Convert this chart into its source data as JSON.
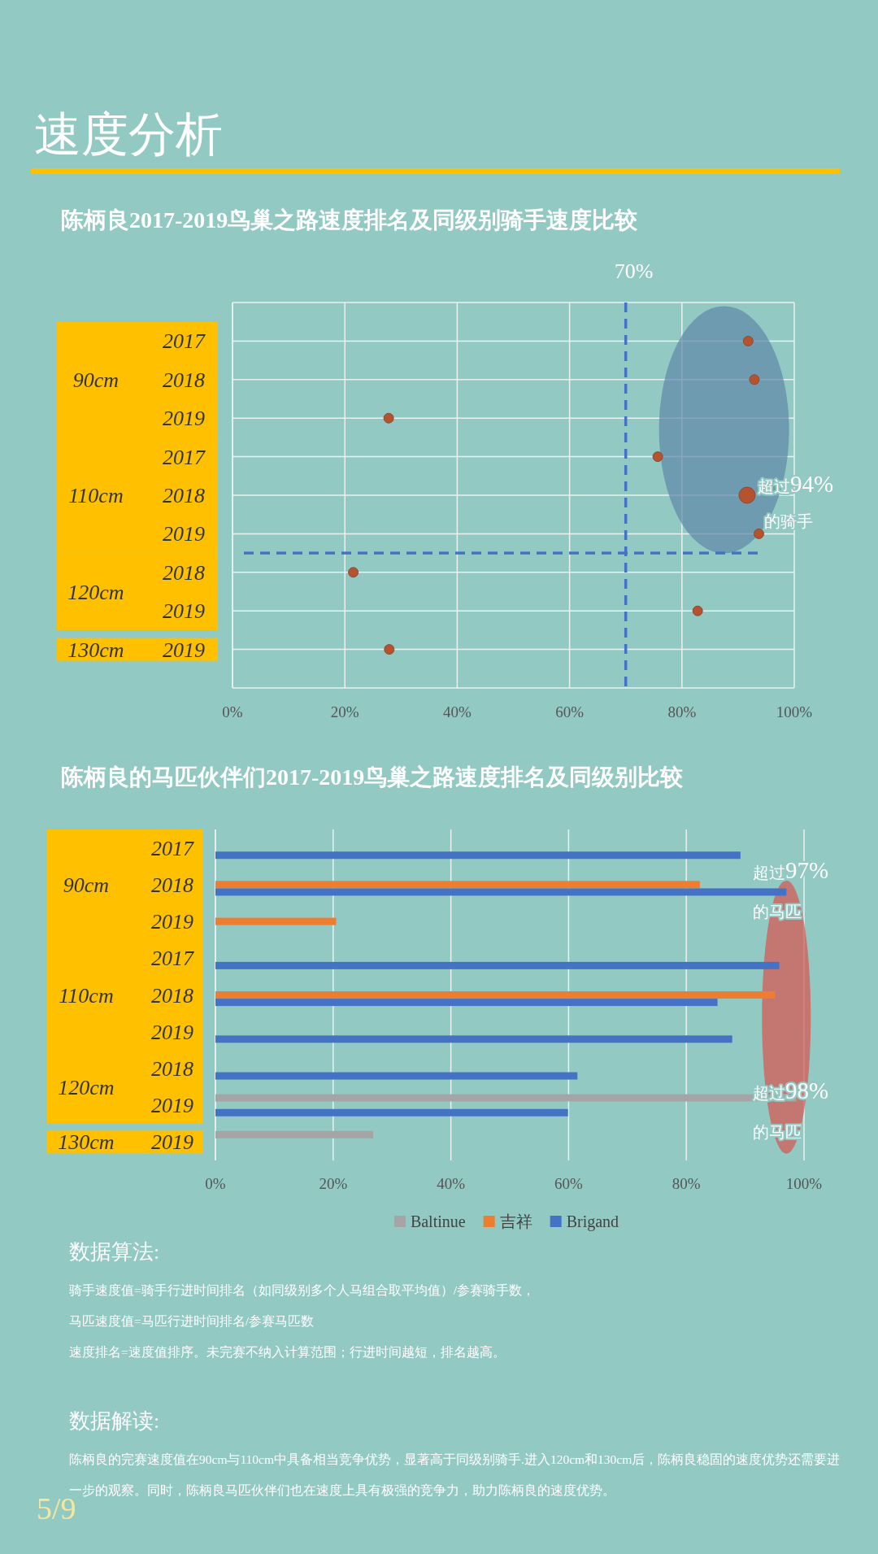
{
  "chart_data": [
    {
      "type": "other",
      "title": "速度分析"
    },
    {
      "type": "bubble",
      "orientation": "horizontal",
      "title": "陈柄良2017-2019鸟巢之路速度排名及同级别骑手速度比较",
      "categories": [
        "2017",
        "2018",
        "2019",
        "2017",
        "2018",
        "2019",
        "2018",
        "2019",
        "2019"
      ],
      "values": [
        91.8,
        92.9,
        27.8,
        75.7,
        91.6,
        93.7,
        21.5,
        82.8,
        27.9
      ],
      "sizes": [
        0.36,
        0.36,
        0.36,
        0.36,
        1,
        0.36,
        0.36,
        0.36,
        0.36
      ],
      "color": "#b5532e",
      "xlim": [
        0,
        100
      ],
      "xticks": [
        {
          "value": 0,
          "label": "0%"
        },
        {
          "value": 20,
          "label": "20%"
        },
        {
          "value": 40,
          "label": "40%"
        },
        {
          "value": 60,
          "label": "60%"
        },
        {
          "value": 80,
          "label": "80%"
        },
        {
          "value": 100,
          "label": "100%"
        }
      ],
      "grid": true,
      "ref_lines": [
        {
          "axis": "x",
          "value": 70,
          "label": "70%",
          "color": "#4472c4",
          "line_style": "dashed"
        }
      ],
      "annotations": [
        "90cm",
        "110cm",
        "120cm",
        "130cm",
        "超过94%",
        "的骑手"
      ]
    },
    {
      "type": "bar",
      "orientation": "horizontal",
      "title": "陈柄良的马匹伙伴们2017-2019鸟巢之路速度排名及同级别比较",
      "categories": [
        "2017",
        "2018",
        "2019",
        "2017",
        "2018",
        "2019",
        "2018",
        "2019",
        "2019"
      ],
      "series": [
        {
          "name": "Baltinue",
          "color": "#a5a5a5",
          "values": [
            null,
            null,
            null,
            null,
            null,
            null,
            null,
            98.7,
            26.8
          ]
        },
        {
          "name": "吉祥",
          "color": "#ed7d31",
          "values": [
            null,
            82.3,
            20.5,
            null,
            95.1,
            null,
            null,
            null,
            null
          ]
        },
        {
          "name": "Brigand",
          "color": "#4472c4",
          "values": [
            89.2,
            97.0,
            null,
            95.8,
            85.3,
            87.8,
            61.5,
            59.9,
            null
          ]
        }
      ],
      "xlim": [
        0,
        100
      ],
      "xticks": [
        {
          "value": 0,
          "label": "0%"
        },
        {
          "value": 20,
          "label": "20%"
        },
        {
          "value": 40,
          "label": "40%"
        },
        {
          "value": 60,
          "label": "60%"
        },
        {
          "value": 80,
          "label": "80%"
        },
        {
          "value": 100,
          "label": "100%"
        }
      ],
      "grid": "x",
      "legend": "bottom",
      "annotations": [
        "90cm",
        "110cm",
        "120cm",
        "130cm",
        "超过97%",
        "的马匹",
        "超过98%",
        "的马匹"
      ]
    },
    {
      "type": "other",
      "annotations": [
        "数据算法:",
        "骑手速度值=骑手行进时间排名（如同级别多个人马组合取平均值）/参赛骑手数，",
        "马匹速度值=马匹行进时间排名/参赛马匹数",
        "速度排名=速度值排序。未完赛不纳入计算范围；行进时间越短，排名越高。",
        "数据解读:",
        "陈柄良的完赛速度值在90cm与110cm中具备相当竞争优势，显著高于同级别骑手.进入120cm和130cm后，陈柄良稳固的速度优势还需要进一步的观察。同时，陈柄良马匹伙伴们也在速度上具有极强的竞争力，助力陈柄良的速度优势。",
        "5/9"
      ]
    }
  ]
}
